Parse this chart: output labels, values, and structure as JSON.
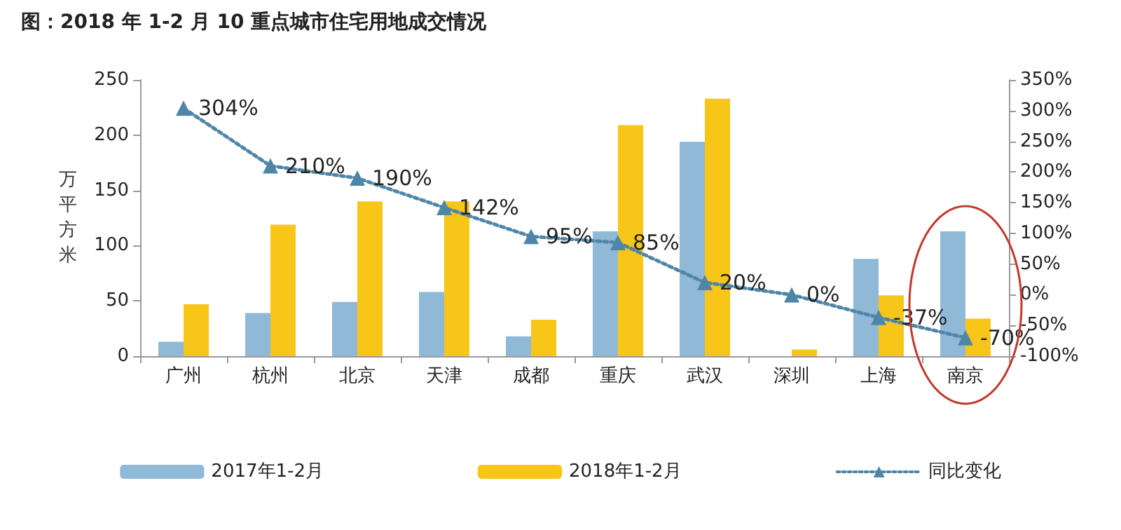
{
  "chart_data": {
    "type": "bar",
    "title": "图：2018 年 1-2 月 10 重点城市住宅用地成交情况",
    "ylabel": "万平方米",
    "categories": [
      "广州",
      "杭州",
      "北京",
      "天津",
      "成都",
      "重庆",
      "武汉",
      "深圳",
      "上海",
      "南京"
    ],
    "series": [
      {
        "name": "2017年1-2月",
        "color": "#8fb9d6",
        "values": [
          13,
          39,
          49,
          58,
          18,
          113,
          194,
          0,
          88,
          113
        ]
      },
      {
        "name": "2018年1-2月",
        "color": "#f8c619",
        "values": [
          47,
          119,
          140,
          140,
          33,
          209,
          233,
          6,
          55,
          34
        ]
      },
      {
        "name": "同比变化",
        "type": "line",
        "axis": "y2",
        "color": "#4f86a8",
        "marker": "triangle",
        "line_style": "dotted",
        "values": [
          304,
          210,
          190,
          142,
          95,
          85,
          20,
          0,
          -37,
          -70
        ],
        "value_labels": [
          "304%",
          "210%",
          "190%",
          "142%",
          "95%",
          "85%",
          "20%",
          "0%",
          "-37%",
          "-70%"
        ]
      }
    ],
    "ylim": [
      0,
      250
    ],
    "yticks": [
      0,
      50,
      100,
      150,
      200,
      250
    ],
    "y2lim": [
      -100,
      350
    ],
    "y2ticks": [
      {
        "value": -100,
        "label": "-100%"
      },
      {
        "value": -50,
        "label": "-50%"
      },
      {
        "value": 0,
        "label": "0%"
      },
      {
        "value": 50,
        "label": "50%"
      },
      {
        "value": 100,
        "label": "100%"
      },
      {
        "value": 150,
        "label": "150%"
      },
      {
        "value": 200,
        "label": "200%"
      },
      {
        "value": 250,
        "label": "250%"
      },
      {
        "value": 300,
        "label": "300%"
      },
      {
        "value": 350,
        "label": "350%"
      }
    ],
    "grid": false,
    "legend": "bottom"
  }
}
